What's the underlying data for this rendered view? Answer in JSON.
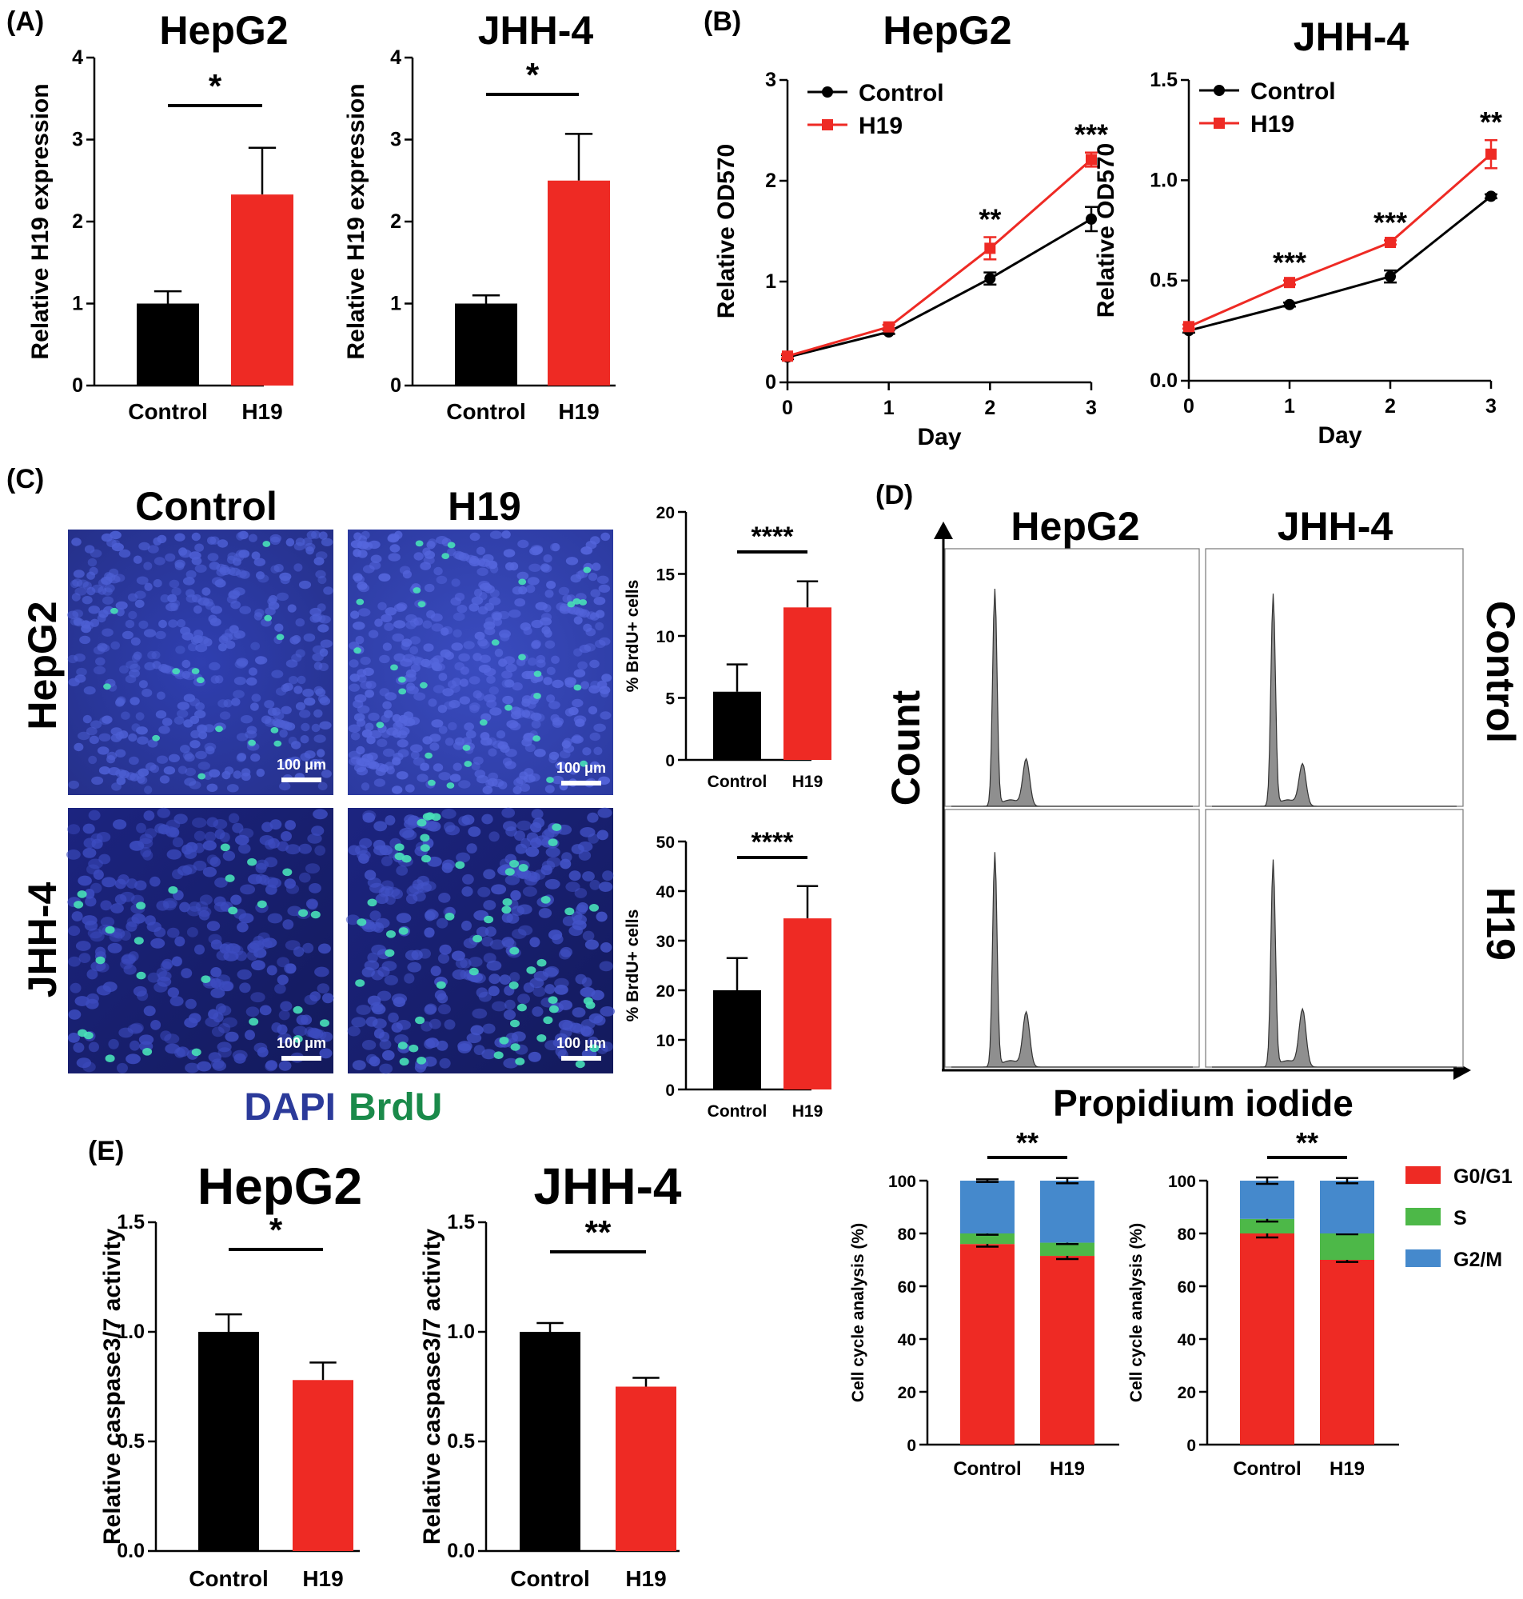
{
  "panels": {
    "A": {
      "letter": "(A)",
      "charts": [
        {
          "title": "HepG2",
          "ylabel": "Relative H19 expression",
          "sig": "*"
        },
        {
          "title": "JHH-4",
          "ylabel": "Relative H19 expression",
          "sig": "*"
        }
      ]
    },
    "B": {
      "letter": "(B)",
      "charts": [
        {
          "title": "HepG2",
          "ylabel": "Relative OD570",
          "xlabel": "Day",
          "sig": [
            "",
            "",
            "**",
            "***"
          ]
        },
        {
          "title": "JHH-4",
          "ylabel": "Relative OD570",
          "xlabel": "Day",
          "sig": [
            "",
            "***",
            "***",
            "**"
          ]
        }
      ],
      "legend": [
        "Control",
        "H19"
      ]
    },
    "C": {
      "letter": "(C)",
      "col_labels": [
        "Control",
        "H19"
      ],
      "row_labels": [
        "HepG2",
        "JHH-4"
      ],
      "scale_bar": "100 μm",
      "stain_legend": {
        "dapi": "DAPI",
        "brdu": "BrdU"
      },
      "charts": [
        {
          "ylabel": "% BrdU+ cells",
          "sig": "****"
        },
        {
          "ylabel": "% BrdU+ cells",
          "sig": "****"
        }
      ]
    },
    "D": {
      "letter": "(D)",
      "col_labels": [
        "HepG2",
        "JHH-4"
      ],
      "row_labels": [
        "Control",
        "H19"
      ],
      "y_axis": "Count",
      "x_axis": "Propidium iodide",
      "charts": [
        {
          "ylabel": "Cell cycle analysis (%)",
          "sig": "**"
        },
        {
          "ylabel": "Cell cycle analysis (%)",
          "sig": "**"
        }
      ],
      "legend": [
        "G0/G1",
        "S",
        "G2/M"
      ]
    },
    "E": {
      "letter": "(E)",
      "charts": [
        {
          "title": "HepG2",
          "ylabel": "Relative caspase3/7 activity",
          "sig": "*"
        },
        {
          "title": "JHH-4",
          "ylabel": "Relative caspase3/7 activity",
          "sig": "**"
        }
      ]
    }
  },
  "colors": {
    "control": "#000000",
    "h19": "#ee2a24",
    "g0g1": "#ee2a24",
    "s": "#4db848",
    "g2m": "#4589cc",
    "dapi": "#2b3a9a",
    "brdu": "#1a8a4a",
    "hist": "#8f8f8f"
  },
  "chart_data": [
    {
      "id": "A1",
      "type": "bar",
      "title": "HepG2",
      "categories": [
        "Control",
        "H19"
      ],
      "values": [
        1.0,
        2.33
      ],
      "errors": [
        0.15,
        0.57
      ],
      "ylabel": "Relative H19 expression",
      "ylim": [
        0,
        4
      ],
      "yticks": [
        0,
        1,
        2,
        3,
        4
      ]
    },
    {
      "id": "A2",
      "type": "bar",
      "title": "JHH-4",
      "categories": [
        "Control",
        "H19"
      ],
      "values": [
        1.0,
        2.5
      ],
      "errors": [
        0.1,
        0.57
      ],
      "ylabel": "Relative H19 expression",
      "ylim": [
        0,
        4
      ],
      "yticks": [
        0,
        1,
        2,
        3,
        4
      ]
    },
    {
      "id": "B1",
      "type": "line",
      "title": "HepG2",
      "x": [
        0,
        1,
        2,
        3
      ],
      "xlabel": "Day",
      "ylabel": "Relative OD570",
      "ylim": [
        0,
        3
      ],
      "yticks": [
        0,
        1,
        2,
        3
      ],
      "series": [
        {
          "name": "Control",
          "values": [
            0.25,
            0.5,
            1.03,
            1.62
          ],
          "errors": [
            0.02,
            0.02,
            0.06,
            0.12
          ]
        },
        {
          "name": "H19",
          "values": [
            0.26,
            0.55,
            1.33,
            2.21
          ],
          "errors": [
            0.02,
            0.02,
            0.11,
            0.07
          ]
        }
      ]
    },
    {
      "id": "B2",
      "type": "line",
      "title": "JHH-4",
      "x": [
        0,
        1,
        2,
        3
      ],
      "xlabel": "Day",
      "ylabel": "Relative OD570",
      "ylim": [
        0,
        1.5
      ],
      "yticks": [
        0.0,
        0.5,
        1.0,
        1.5
      ],
      "series": [
        {
          "name": "Control",
          "values": [
            0.25,
            0.38,
            0.52,
            0.92
          ],
          "errors": [
            0.01,
            0.01,
            0.03,
            0.01
          ]
        },
        {
          "name": "H19",
          "values": [
            0.27,
            0.49,
            0.69,
            1.13
          ],
          "errors": [
            0.01,
            0.01,
            0.01,
            0.07
          ]
        }
      ]
    },
    {
      "id": "C1",
      "type": "bar",
      "categories": [
        "Control",
        "H19"
      ],
      "values": [
        5.5,
        12.3
      ],
      "errors": [
        2.2,
        2.1
      ],
      "ylabel": "% BrdU+ cells",
      "ylim": [
        0,
        20
      ],
      "yticks": [
        0,
        5,
        10,
        15,
        20
      ]
    },
    {
      "id": "C2",
      "type": "bar",
      "categories": [
        "Control",
        "H19"
      ],
      "values": [
        20,
        34.5
      ],
      "errors": [
        6.5,
        6.5
      ],
      "ylabel": "% BrdU+ cells",
      "ylim": [
        0,
        50
      ],
      "yticks": [
        0,
        10,
        20,
        30,
        40,
        50
      ]
    },
    {
      "id": "D1",
      "type": "bar",
      "stacked": true,
      "categories": [
        "Control",
        "H19"
      ],
      "ylabel": "Cell cycle analysis (%)",
      "ylim": [
        0,
        100
      ],
      "yticks": [
        0,
        20,
        40,
        60,
        80,
        100
      ],
      "series": [
        {
          "name": "G0/G1",
          "values": [
            76,
            71.5
          ],
          "errors": [
            1,
            1.2
          ]
        },
        {
          "name": "S",
          "values": [
            4,
            5
          ],
          "errors": [
            0.5,
            0.5
          ]
        },
        {
          "name": "G2/M",
          "values": [
            20,
            23.5
          ],
          "errors": [
            0.5,
            1
          ]
        }
      ]
    },
    {
      "id": "D2",
      "type": "bar",
      "stacked": true,
      "categories": [
        "Control",
        "H19"
      ],
      "ylabel": "Cell cycle analysis (%)",
      "ylim": [
        0,
        100
      ],
      "yticks": [
        0,
        20,
        40,
        60,
        80,
        100
      ],
      "series": [
        {
          "name": "G0/G1",
          "values": [
            80,
            70
          ],
          "errors": [
            1.5,
            0.8
          ]
        },
        {
          "name": "S",
          "values": [
            5.5,
            10
          ],
          "errors": [
            1,
            0.3
          ]
        },
        {
          "name": "G2/M",
          "values": [
            14.5,
            20
          ],
          "errors": [
            1.2,
            1
          ]
        }
      ]
    },
    {
      "id": "E1",
      "type": "bar",
      "title": "HepG2",
      "categories": [
        "Control",
        "H19"
      ],
      "values": [
        1.0,
        0.78
      ],
      "errors": [
        0.08,
        0.08
      ],
      "ylabel": "Relative caspase3/7 activity",
      "ylim": [
        0,
        1.5
      ],
      "yticks": [
        0.0,
        0.5,
        1.0,
        1.5
      ]
    },
    {
      "id": "E2",
      "type": "bar",
      "title": "JHH-4",
      "categories": [
        "Control",
        "H19"
      ],
      "values": [
        1.0,
        0.75
      ],
      "errors": [
        0.04,
        0.04
      ],
      "ylabel": "Relative caspase3/7 activity",
      "ylim": [
        0,
        1.5
      ],
      "yticks": [
        0.0,
        0.5,
        1.0,
        1.5
      ]
    }
  ]
}
